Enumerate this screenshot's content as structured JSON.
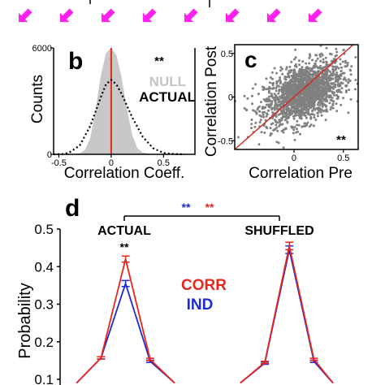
{
  "colors": {
    "arrow": "#ff22ee",
    "null_fill": "#c8c8c8",
    "actual_line": "#000000",
    "zero_line": "#e8261c",
    "scatter_point": "#808080",
    "identity_line": "#d42a20",
    "corr": "#e8261c",
    "ind": "#1e2ad0",
    "star_blue": "#1e2ad0",
    "star_red": "#e8261c",
    "axis": "#000000"
  },
  "arrows": {
    "count": 8,
    "icon": "arrow-up-left-icon"
  },
  "chart_data": [
    {
      "id": "b",
      "type": "area",
      "panel_label": "b",
      "xlabel": "Correlation Coeff.",
      "ylabel": "Counts",
      "xlim": [
        -0.55,
        0.8
      ],
      "ylim": [
        0,
        6000
      ],
      "xticks": [
        -0.5,
        0,
        0.5
      ],
      "xtick_labels": [
        "-0.5",
        "0",
        "0.5"
      ],
      "yticks": [
        0,
        6000
      ],
      "ytick_labels": [
        "0",
        "6000"
      ],
      "annotation": "**",
      "legend": [
        "NULL",
        "ACTUAL"
      ],
      "series": [
        {
          "name": "NULL",
          "style": "filled",
          "x": [
            -0.55,
            -0.4,
            -0.3,
            -0.25,
            -0.2,
            -0.15,
            -0.1,
            -0.05,
            0,
            0.05,
            0.1,
            0.15,
            0.2,
            0.25,
            0.3,
            0.4,
            0.55,
            0.8
          ],
          "values": [
            0,
            0,
            50,
            250,
            900,
            2500,
            4400,
            5700,
            6000,
            5600,
            4300,
            2600,
            1100,
            350,
            100,
            0,
            0,
            0
          ]
        },
        {
          "name": "ACTUAL",
          "style": "dotted",
          "x": [
            -0.55,
            -0.45,
            -0.4,
            -0.3,
            -0.2,
            -0.1,
            -0.05,
            0,
            0.05,
            0.1,
            0.2,
            0.3,
            0.4,
            0.5,
            0.6,
            0.7
          ],
          "values": [
            0,
            20,
            100,
            500,
            1600,
            3200,
            3950,
            4200,
            3950,
            3400,
            2100,
            1000,
            350,
            80,
            20,
            0
          ]
        }
      ],
      "vline_x": 0
    },
    {
      "id": "c",
      "type": "scatter",
      "panel_label": "c",
      "xlabel": "Correlation Pre",
      "ylabel": "Correlation Post",
      "xlim": [
        -0.6,
        0.65
      ],
      "ylim": [
        -0.6,
        0.6
      ],
      "xticks": [
        0,
        0.5
      ],
      "xtick_labels": [
        "0",
        "0.5"
      ],
      "yticks": [
        -0.5,
        0,
        0.5
      ],
      "ytick_labels": [
        "-0.5",
        "0",
        "0.5"
      ],
      "annotation": "**",
      "identity_line": true,
      "point_cloud": {
        "center": [
          0.1,
          0.05
        ],
        "sd": [
          0.2,
          0.18
        ],
        "corr": 0.45,
        "n": 1800
      }
    },
    {
      "id": "d",
      "type": "line",
      "panel_label": "d",
      "ylabel": "Probability",
      "xlim": [
        0,
        10
      ],
      "ylim": [
        0.1,
        0.5
      ],
      "yticks": [
        0.1,
        0.2,
        0.3,
        0.4,
        0.5
      ],
      "ytick_labels": [
        "0.1",
        "0.2",
        "0.3",
        "0.4",
        "0.5"
      ],
      "group_labels": [
        "ACTUAL",
        "SHUFFLED"
      ],
      "group_annotation": "**",
      "bracket_stars": [
        {
          "text": "**",
          "color_key": "star_blue"
        },
        {
          "text": "**",
          "color_key": "star_red"
        }
      ],
      "legend": [
        "CORR",
        "IND"
      ],
      "series": [
        {
          "name": "CORR",
          "color_key": "corr",
          "x": [
            0.6,
            1.5,
            2.4,
            3.3,
            4.2,
            6.6,
            7.5,
            8.4,
            9.3,
            10.0
          ],
          "values": [
            0.09,
            0.157,
            0.42,
            0.153,
            0.09,
            0.09,
            0.145,
            0.455,
            0.153,
            0.09
          ],
          "err": [
            0,
            0.003,
            0.008,
            0.003,
            0,
            0,
            0.003,
            0.01,
            0.003,
            0
          ]
        },
        {
          "name": "IND",
          "color_key": "ind",
          "x": [
            0.6,
            1.5,
            2.4,
            3.3,
            4.2,
            6.6,
            7.5,
            8.4,
            9.3,
            10.0
          ],
          "values": [
            0.09,
            0.157,
            0.355,
            0.148,
            0.09,
            0.09,
            0.143,
            0.445,
            0.148,
            0.09
          ],
          "err": [
            0,
            0.003,
            0.008,
            0.003,
            0,
            0,
            0.003,
            0.01,
            0.003,
            0
          ]
        }
      ]
    }
  ]
}
